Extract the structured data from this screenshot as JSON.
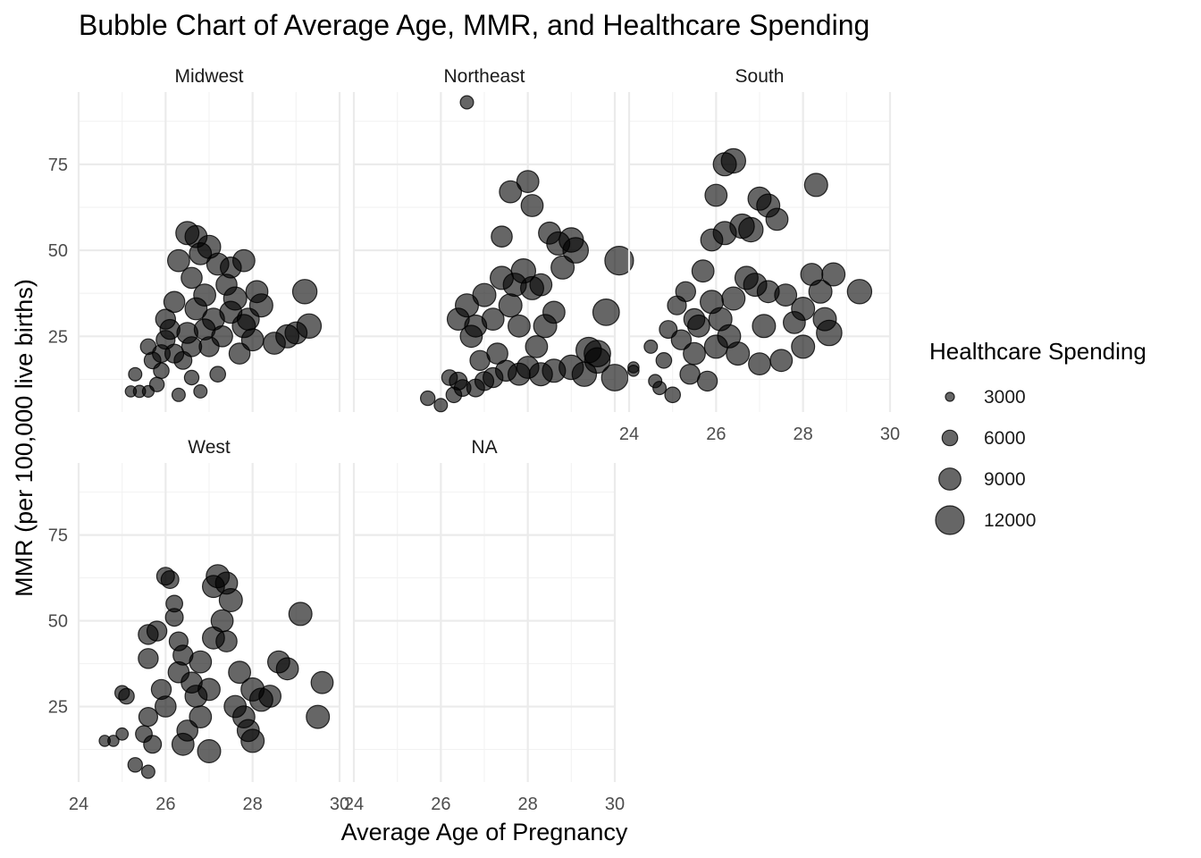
{
  "chart_data": {
    "type": "scatter",
    "title": "Bubble Chart of Average Age, MMR, and Healthcare Spending",
    "xlabel": "Average Age of Pregnancy",
    "ylabel": "MMR (per 100,000 live births)",
    "xlim": [
      24,
      30
    ],
    "ylim": [
      3,
      96
    ],
    "x_ticks": [
      24,
      26,
      28,
      30
    ],
    "y_ticks": [
      25,
      50,
      75
    ],
    "grid": true,
    "point_color": "#000000",
    "point_opacity": 0.6,
    "legend": {
      "title": "Healthcare Spending",
      "placement": "right",
      "values": [
        3000,
        6000,
        9000,
        12000
      ]
    },
    "panels": [
      {
        "name": "Midwest",
        "points": [
          [
            25.2,
            9,
            4000
          ],
          [
            25.4,
            9,
            4500
          ],
          [
            25.6,
            9,
            4200
          ],
          [
            25.3,
            14,
            5000
          ],
          [
            25.8,
            11,
            5500
          ],
          [
            25.6,
            22,
            6000
          ],
          [
            25.7,
            18,
            6500
          ],
          [
            25.9,
            20,
            7000
          ],
          [
            26.0,
            24,
            7500
          ],
          [
            26.1,
            27,
            8000
          ],
          [
            26.2,
            35,
            8500
          ],
          [
            26.3,
            47,
            9000
          ],
          [
            26.5,
            55,
            9500
          ],
          [
            26.7,
            54,
            9000
          ],
          [
            26.6,
            42,
            8500
          ],
          [
            26.8,
            49,
            9000
          ],
          [
            27.0,
            51,
            9500
          ],
          [
            27.2,
            46,
            9000
          ],
          [
            27.5,
            45,
            8500
          ],
          [
            27.8,
            47,
            9000
          ],
          [
            26.3,
            8,
            5000
          ],
          [
            26.6,
            13,
            5500
          ],
          [
            26.8,
            9,
            5000
          ],
          [
            27.2,
            14,
            6000
          ],
          [
            26.4,
            18,
            7000
          ],
          [
            26.6,
            22,
            8000
          ],
          [
            26.9,
            27,
            8500
          ],
          [
            27.1,
            30,
            9000
          ],
          [
            27.3,
            25,
            8500
          ],
          [
            27.5,
            32,
            9000
          ],
          [
            27.8,
            28,
            9500
          ],
          [
            28.0,
            24,
            9000
          ],
          [
            28.2,
            34,
            9500
          ],
          [
            28.5,
            23,
            9000
          ],
          [
            28.8,
            25,
            9500
          ],
          [
            29.0,
            26,
            9000
          ],
          [
            29.2,
            38,
            10000
          ],
          [
            29.3,
            28,
            10000
          ],
          [
            26.9,
            37,
            9000
          ],
          [
            27.4,
            40,
            8500
          ],
          [
            26.0,
            30,
            8000
          ],
          [
            26.7,
            33,
            9000
          ],
          [
            27.6,
            36,
            9500
          ],
          [
            26.2,
            20,
            7500
          ],
          [
            27.0,
            22,
            8000
          ],
          [
            27.7,
            20,
            8500
          ],
          [
            26.5,
            26,
            8500
          ],
          [
            25.9,
            15,
            6000
          ],
          [
            28.1,
            38,
            9000
          ],
          [
            27.9,
            30,
            9000
          ]
        ]
      },
      {
        "name": "Northeast",
        "points": [
          [
            26.6,
            93,
            5000
          ],
          [
            25.7,
            7,
            5500
          ],
          [
            26.0,
            5,
            5000
          ],
          [
            26.2,
            13,
            6000
          ],
          [
            26.3,
            8,
            6000
          ],
          [
            26.5,
            10,
            6500
          ],
          [
            26.8,
            10,
            7000
          ],
          [
            27.0,
            12,
            7500
          ],
          [
            27.2,
            13,
            8000
          ],
          [
            27.5,
            15,
            8500
          ],
          [
            27.8,
            14,
            9000
          ],
          [
            28.0,
            16,
            9000
          ],
          [
            28.3,
            14,
            9500
          ],
          [
            28.6,
            15,
            9500
          ],
          [
            29.0,
            16,
            10000
          ],
          [
            29.3,
            14,
            10000
          ],
          [
            29.6,
            18,
            10500
          ],
          [
            30.0,
            13,
            11000
          ],
          [
            26.4,
            30,
            9000
          ],
          [
            26.6,
            34,
            9500
          ],
          [
            26.8,
            28,
            9000
          ],
          [
            27.0,
            37,
            9500
          ],
          [
            26.7,
            25,
            9000
          ],
          [
            27.2,
            30,
            9000
          ],
          [
            27.4,
            42,
            9500
          ],
          [
            27.7,
            40,
            9500
          ],
          [
            27.9,
            44,
            10000
          ],
          [
            28.1,
            39,
            9500
          ],
          [
            28.3,
            40,
            9000
          ],
          [
            27.6,
            67,
            9000
          ],
          [
            28.0,
            70,
            9000
          ],
          [
            28.1,
            63,
            9000
          ],
          [
            27.4,
            54,
            8500
          ],
          [
            28.5,
            55,
            9000
          ],
          [
            28.7,
            52,
            9500
          ],
          [
            29.0,
            53,
            10000
          ],
          [
            29.1,
            50,
            10500
          ],
          [
            28.8,
            45,
            9500
          ],
          [
            29.8,
            32,
            11000
          ],
          [
            30.1,
            47,
            12000
          ],
          [
            28.4,
            28,
            9500
          ],
          [
            28.6,
            32,
            9000
          ],
          [
            29.4,
            21,
            10500
          ],
          [
            29.6,
            20,
            11000
          ],
          [
            27.3,
            20,
            8500
          ],
          [
            27.8,
            28,
            9000
          ],
          [
            28.2,
            22,
            9000
          ],
          [
            26.9,
            18,
            8000
          ],
          [
            26.4,
            12,
            7000
          ],
          [
            27.6,
            34,
            9500
          ]
        ]
      },
      {
        "name": "South",
        "points": [
          [
            24.1,
            16,
            4000
          ],
          [
            24.1,
            15,
            4000
          ],
          [
            24.5,
            22,
            5000
          ],
          [
            24.6,
            12,
            5000
          ],
          [
            24.7,
            10,
            5000
          ],
          [
            25.0,
            8,
            6000
          ],
          [
            24.8,
            18,
            6000
          ],
          [
            24.9,
            27,
            7000
          ],
          [
            25.1,
            34,
            7500
          ],
          [
            25.3,
            38,
            8000
          ],
          [
            25.2,
            24,
            8000
          ],
          [
            25.5,
            30,
            8500
          ],
          [
            25.7,
            44,
            9000
          ],
          [
            25.9,
            53,
            9000
          ],
          [
            26.2,
            55,
            9500
          ],
          [
            26.0,
            66,
            9000
          ],
          [
            26.2,
            75,
            9500
          ],
          [
            26.4,
            76,
            10000
          ],
          [
            26.6,
            57,
            10000
          ],
          [
            26.8,
            56,
            10000
          ],
          [
            27.0,
            65,
            9500
          ],
          [
            27.2,
            63,
            9500
          ],
          [
            27.4,
            59,
            9000
          ],
          [
            26.9,
            40,
            9500
          ],
          [
            27.2,
            38,
            9000
          ],
          [
            27.6,
            37,
            9000
          ],
          [
            28.0,
            33,
            9500
          ],
          [
            28.2,
            43,
            9000
          ],
          [
            28.3,
            69,
            9500
          ],
          [
            28.4,
            38,
            9500
          ],
          [
            28.7,
            43,
            9500
          ],
          [
            29.3,
            38,
            10000
          ],
          [
            28.6,
            26,
            10500
          ],
          [
            28.0,
            22,
            9500
          ],
          [
            27.5,
            18,
            9000
          ],
          [
            27.0,
            17,
            9000
          ],
          [
            26.5,
            20,
            9500
          ],
          [
            26.0,
            22,
            9500
          ],
          [
            25.5,
            20,
            9000
          ],
          [
            25.8,
            12,
            8000
          ],
          [
            25.4,
            14,
            8000
          ],
          [
            25.6,
            28,
            9000
          ],
          [
            26.1,
            30,
            9500
          ],
          [
            26.4,
            36,
            9500
          ],
          [
            26.7,
            42,
            9500
          ],
          [
            25.9,
            35,
            9500
          ],
          [
            26.3,
            25,
            9500
          ],
          [
            27.1,
            28,
            9500
          ],
          [
            27.8,
            29,
            9000
          ],
          [
            28.5,
            30,
            9500
          ]
        ]
      },
      {
        "name": "West",
        "points": [
          [
            24.6,
            15,
            4000
          ],
          [
            24.8,
            15,
            4000
          ],
          [
            25.0,
            17,
            4500
          ],
          [
            25.0,
            29,
            5500
          ],
          [
            25.1,
            28,
            6000
          ],
          [
            25.3,
            8,
            5500
          ],
          [
            25.6,
            6,
            5000
          ],
          [
            25.5,
            17,
            6500
          ],
          [
            25.6,
            22,
            7500
          ],
          [
            25.6,
            39,
            8000
          ],
          [
            25.6,
            46,
            8000
          ],
          [
            25.8,
            47,
            8000
          ],
          [
            26.0,
            63,
            7000
          ],
          [
            26.1,
            62,
            7000
          ],
          [
            26.2,
            55,
            6500
          ],
          [
            26.2,
            51,
            7000
          ],
          [
            26.3,
            44,
            7500
          ],
          [
            26.4,
            40,
            8000
          ],
          [
            26.6,
            32,
            8500
          ],
          [
            26.7,
            28,
            9000
          ],
          [
            26.8,
            22,
            9000
          ],
          [
            27.0,
            12,
            9500
          ],
          [
            27.1,
            60,
            9000
          ],
          [
            27.2,
            63,
            9500
          ],
          [
            27.4,
            61,
            9000
          ],
          [
            27.5,
            56,
            9500
          ],
          [
            27.3,
            50,
            9000
          ],
          [
            27.1,
            45,
            9000
          ],
          [
            27.4,
            44,
            8500
          ],
          [
            27.7,
            35,
            9000
          ],
          [
            28.0,
            30,
            9500
          ],
          [
            28.2,
            27,
            9500
          ],
          [
            28.0,
            15,
            9500
          ],
          [
            28.6,
            38,
            9000
          ],
          [
            28.8,
            36,
            9000
          ],
          [
            29.1,
            52,
            9500
          ],
          [
            29.6,
            32,
            9000
          ],
          [
            29.5,
            22,
            9500
          ],
          [
            28.4,
            28,
            9000
          ],
          [
            27.8,
            22,
            9000
          ],
          [
            26.5,
            18,
            8500
          ],
          [
            26.0,
            25,
            8500
          ],
          [
            25.9,
            30,
            8000
          ],
          [
            26.3,
            35,
            8500
          ],
          [
            27.0,
            30,
            9000
          ],
          [
            27.6,
            25,
            9000
          ],
          [
            26.8,
            38,
            9000
          ],
          [
            25.7,
            14,
            7000
          ],
          [
            27.9,
            18,
            9000
          ],
          [
            26.4,
            14,
            9000
          ]
        ]
      },
      {
        "name": "NA",
        "points": []
      }
    ]
  }
}
